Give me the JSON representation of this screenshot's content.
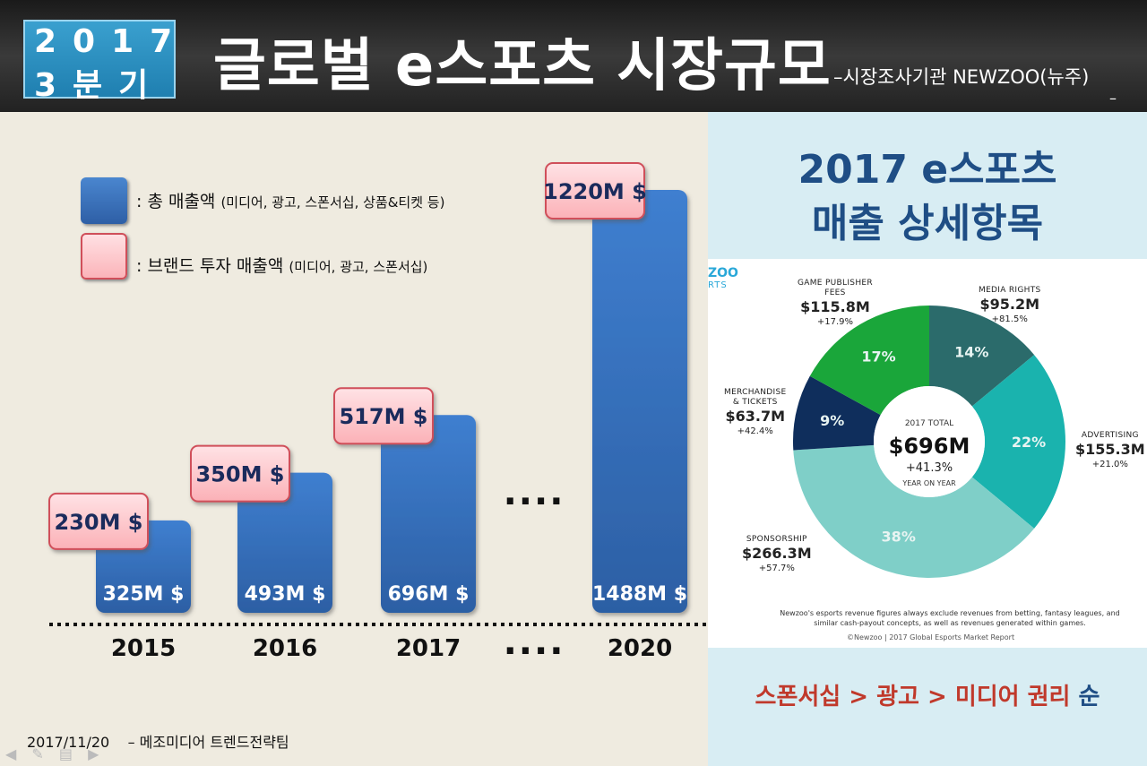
{
  "header": {
    "badge_line1": "2017",
    "badge_line2": "3분기",
    "title": "글로벌 e스포츠 시장규모",
    "source": "–시장조사기관 NEWZOO(뉴주)",
    "source_dash": "–"
  },
  "legend": {
    "total_label": ": 총 매출액",
    "total_detail": "(미디어, 광고, 스폰서십, 상품&티켓 등)",
    "brand_label": ": 브랜드 투자 매출액",
    "brand_detail": "(미디어, 광고, 스폰서십)"
  },
  "footer": {
    "date": "2017/11/20",
    "team": "–  메조미디어 트렌드전략팀"
  },
  "chart_data": [
    {
      "type": "bar",
      "categories": [
        "2015",
        "2016",
        "2017",
        "2020"
      ],
      "gap_marker": "....",
      "series": [
        {
          "name": "총 매출액",
          "values": [
            325,
            493,
            696,
            1488
          ],
          "labels": [
            "325M $",
            "493M $",
            "696M $",
            "1488M $"
          ],
          "color": "#3a72c0"
        },
        {
          "name": "브랜드 투자 매출액",
          "values": [
            230,
            350,
            517,
            1220
          ],
          "labels": [
            "230M $",
            "350M $",
            "517M $",
            "1220M $"
          ],
          "color": "#fcc4c8"
        }
      ]
    },
    {
      "type": "pie",
      "title": "2017 e스포츠 매출 상세항목",
      "center": {
        "line1": "2017 TOTAL",
        "line2": "$696M",
        "line3": "+41.3%",
        "line4": "YEAR ON YEAR"
      },
      "slices": [
        {
          "name": "MEDIA RIGHTS",
          "value": 14,
          "pct_label": "14%",
          "amount": "$95.2M",
          "growth": "+81.5%",
          "color": "#2b6b6b"
        },
        {
          "name": "ADVERTISING",
          "value": 22,
          "pct_label": "22%",
          "amount": "$155.3M",
          "growth": "+21.0%",
          "color": "#1ab3ae"
        },
        {
          "name": "SPONSORSHIP",
          "value": 38,
          "pct_label": "38%",
          "amount": "$266.3M",
          "growth": "+57.7%",
          "color": "#7fcfc8"
        },
        {
          "name": "MERCHANDISE & TICKETS",
          "value": 9,
          "pct_label": "9%",
          "amount": "$63.7M",
          "growth": "+42.4%",
          "color": "#0f2e5c"
        },
        {
          "name": "GAME PUBLISHER FEES",
          "value": 17,
          "pct_label": "17%",
          "amount": "$115.8M",
          "growth": "+17.9%",
          "color": "#1aa63a"
        }
      ],
      "name_lines": {
        "gp1": "GAME PUBLISHER",
        "gp2": "FEES",
        "mt1": "MERCHANDISE",
        "mt2": "& TICKETS"
      }
    }
  ],
  "infographic": {
    "logo": "ZOO",
    "logo_sub": "RTS",
    "disclaimer": "Newzoo's esports revenue figures always exclude revenues from betting, fantasy leagues, and similar cash-payout concepts, as well as revenues generated within games.",
    "copyright": "©Newzoo | 2017 Global Esports Market Report"
  },
  "right_title": {
    "line1": "2017 e스포츠",
    "line2": "매출 상세항목"
  },
  "ranking": {
    "text": "스폰서십 > 광고 > 미디어 권리",
    "suffix": "순"
  }
}
